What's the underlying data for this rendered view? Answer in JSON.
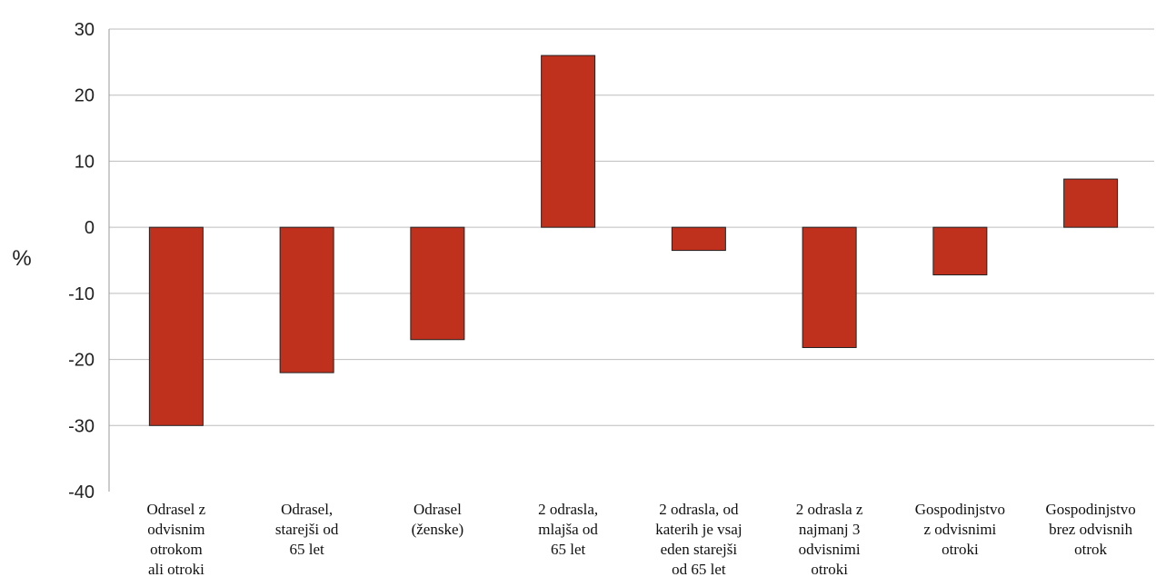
{
  "chart_data": {
    "type": "bar",
    "ylabel": "%",
    "ylim": [
      -40,
      30
    ],
    "yticks": [
      30,
      20,
      10,
      0,
      -10,
      -20,
      -30,
      -40
    ],
    "yticks_labels": [
      "30",
      "20",
      "10",
      "0",
      "-10",
      "-20",
      "-30",
      "-40"
    ],
    "grid": true,
    "bar_color": "#c0311d",
    "categories": [
      [
        "Odrasel z",
        "odvisnim",
        "otrokom",
        "ali otroki"
      ],
      [
        "Odrasel,",
        "starejši od",
        "65 let"
      ],
      [
        "Odrasel",
        "(ženske)"
      ],
      [
        "2 odrasla,",
        "mlajša od",
        "65 let"
      ],
      [
        "2 odrasla, od",
        "katerih je vsaj",
        "eden starejši",
        "od 65 let"
      ],
      [
        "2 odrasla z",
        "najmanj 3",
        "odvisnimi",
        "otroki"
      ],
      [
        "Gospodinjstvo",
        "z odvisnimi",
        "otroki"
      ],
      [
        "Gospodinjstvo",
        "brez odvisnih",
        "otrok"
      ]
    ],
    "values": [
      -30,
      -22,
      -17,
      26,
      -3.5,
      -18.2,
      -7.2,
      7.3
    ]
  }
}
